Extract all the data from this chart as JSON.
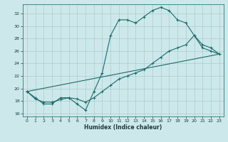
{
  "title": "",
  "xlabel": "Humidex (Indice chaleur)",
  "bg_color": "#cce8ea",
  "line_color": "#1a6b6b",
  "grid_color": "#aacccc",
  "xlim": [
    -0.5,
    23.5
  ],
  "ylim": [
    15.5,
    33.5
  ],
  "xticks": [
    0,
    1,
    2,
    3,
    4,
    5,
    6,
    7,
    8,
    9,
    10,
    11,
    12,
    13,
    14,
    15,
    16,
    17,
    18,
    19,
    20,
    21,
    22,
    23
  ],
  "yticks": [
    16,
    18,
    20,
    22,
    24,
    26,
    28,
    30,
    32
  ],
  "line1_x": [
    0,
    1,
    2,
    3,
    4,
    5,
    6,
    7,
    8,
    9,
    10,
    11,
    12,
    13,
    14,
    15,
    16,
    17,
    18,
    19,
    20,
    21,
    22,
    23
  ],
  "line1_y": [
    19.5,
    18.5,
    17.5,
    17.5,
    18.5,
    18.5,
    17.5,
    16.5,
    19.5,
    22.5,
    28.5,
    31.0,
    31.0,
    30.5,
    31.5,
    32.5,
    33.0,
    32.5,
    31.0,
    30.5,
    28.5,
    27.0,
    26.5,
    25.5
  ],
  "line2_x": [
    0,
    1,
    2,
    3,
    4,
    5,
    6,
    7,
    8,
    9,
    10,
    11,
    12,
    13,
    14,
    15,
    16,
    17,
    18,
    19,
    20,
    21,
    22,
    23
  ],
  "line2_y": [
    19.5,
    18.3,
    17.8,
    17.8,
    18.2,
    18.5,
    18.3,
    17.8,
    18.5,
    19.5,
    20.5,
    21.5,
    22.0,
    22.5,
    23.0,
    24.0,
    25.0,
    26.0,
    26.5,
    27.0,
    28.5,
    26.5,
    26.0,
    25.5
  ],
  "line3_x": [
    0,
    23
  ],
  "line3_y": [
    19.5,
    25.5
  ]
}
